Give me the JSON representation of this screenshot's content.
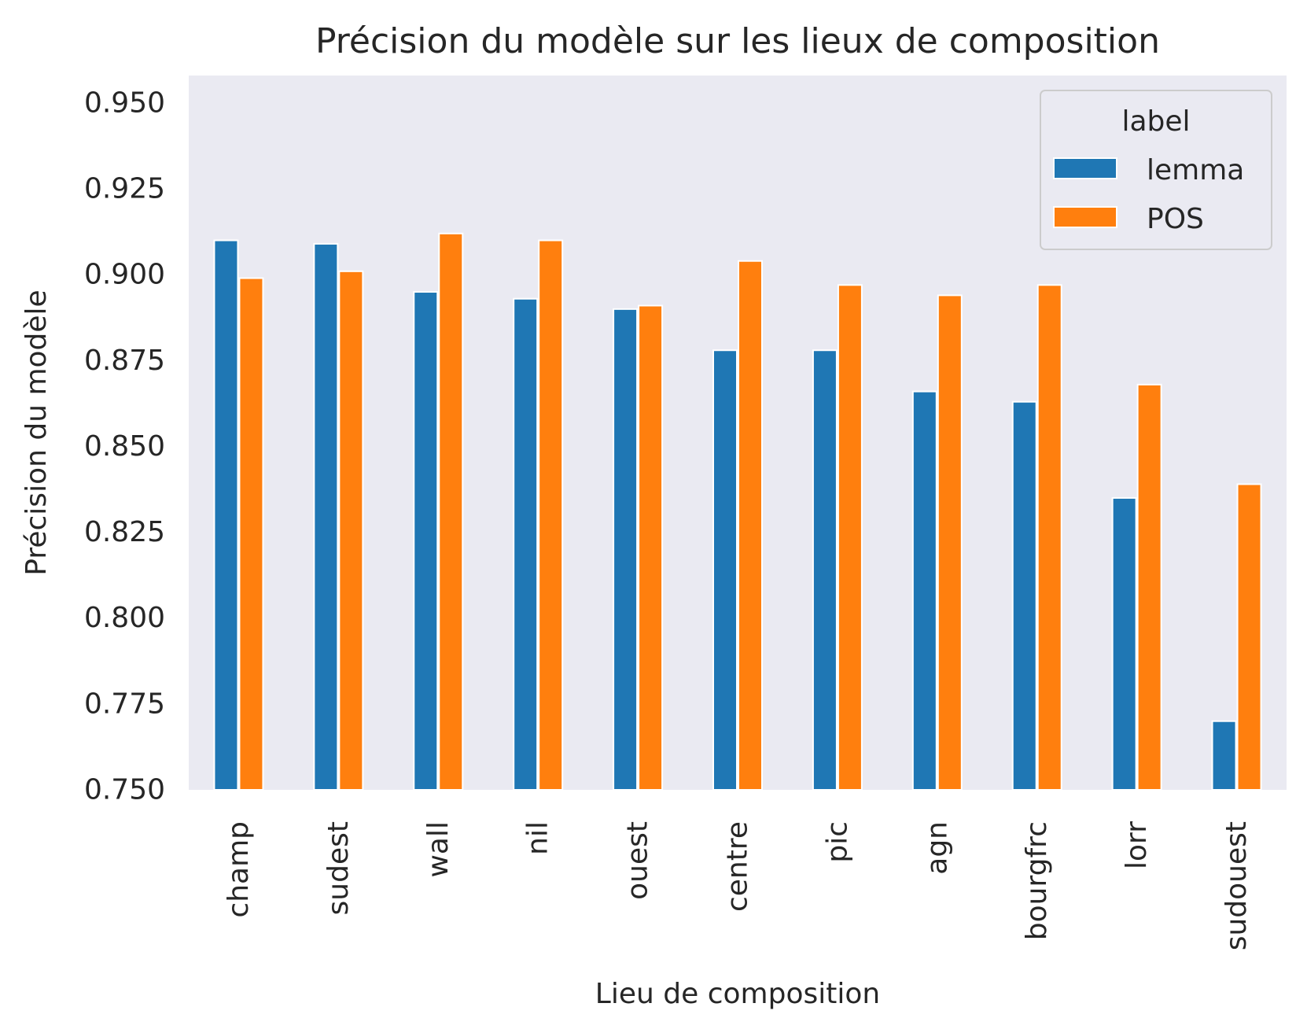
{
  "chart_data": {
    "type": "bar",
    "title": "Précision du modèle sur les lieux de composition",
    "xlabel": "Lieu de composition",
    "ylabel": "Précision du modèle",
    "ylim": [
      0.75,
      0.958
    ],
    "yticks": [
      "0.750",
      "0.775",
      "0.800",
      "0.825",
      "0.850",
      "0.875",
      "0.900",
      "0.925",
      "0.950"
    ],
    "categories": [
      "champ",
      "sudest",
      "wall",
      "nil",
      "ouest",
      "centre",
      "pic",
      "agn",
      "bourgfrc",
      "lorr",
      "sudouest"
    ],
    "legend": {
      "title": "label",
      "position": "top-right"
    },
    "grid": false,
    "background": "#eaeaf2",
    "series": [
      {
        "name": "lemma",
        "color": "#1f77b4",
        "values": [
          0.91,
          0.909,
          0.895,
          0.893,
          0.89,
          0.878,
          0.878,
          0.866,
          0.863,
          0.835,
          0.77
        ]
      },
      {
        "name": "POS",
        "color": "#ff7f0e",
        "values": [
          0.899,
          0.901,
          0.912,
          0.91,
          0.891,
          0.904,
          0.897,
          0.894,
          0.897,
          0.868,
          0.839
        ]
      }
    ]
  }
}
